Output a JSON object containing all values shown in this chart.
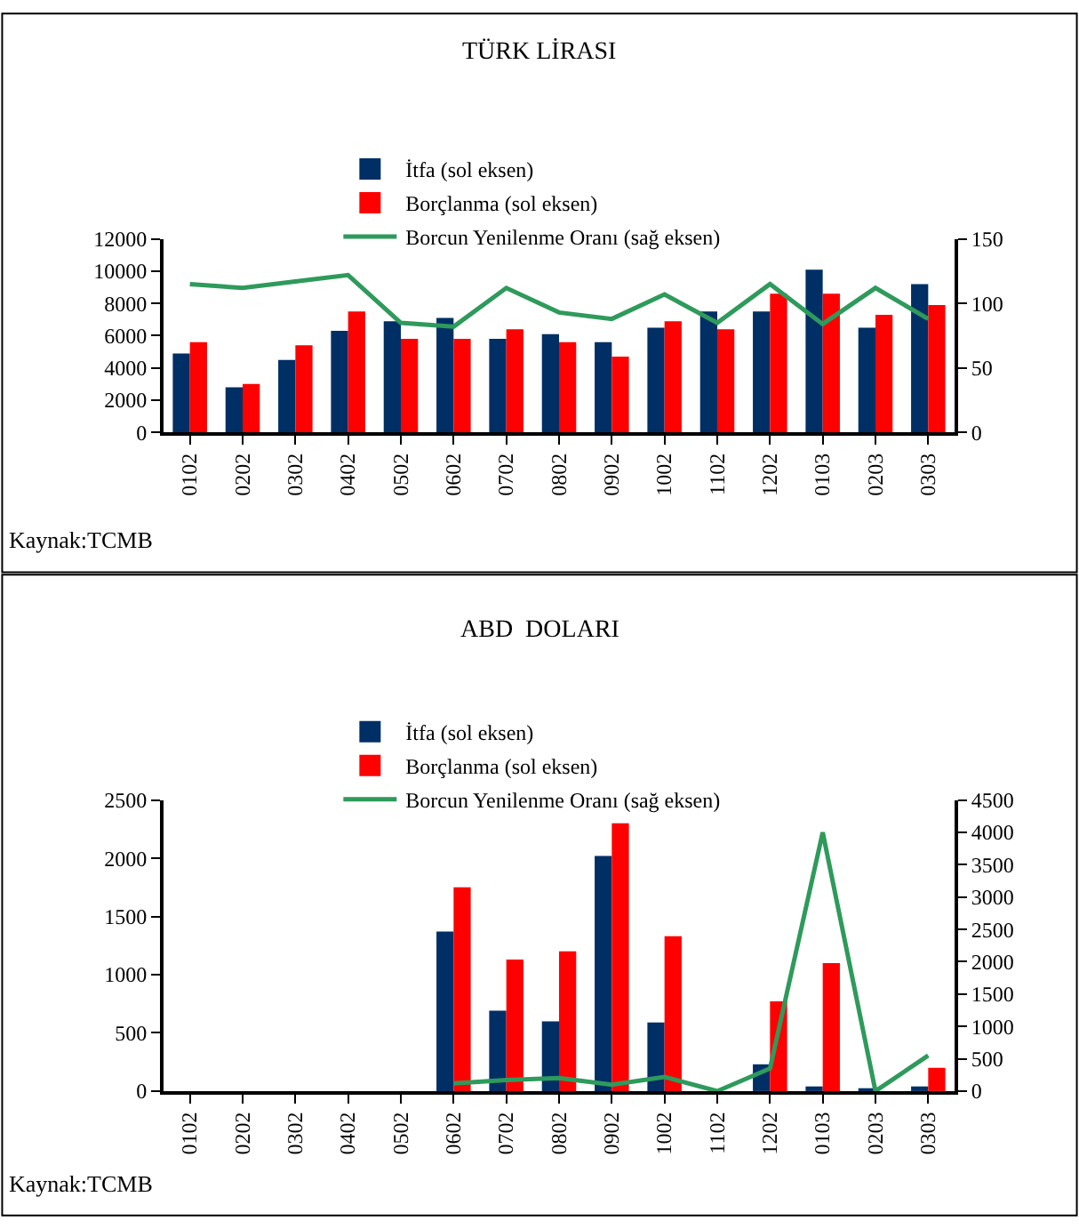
{
  "chart_data": [
    {
      "type": "bar",
      "title": "TÜRK LİRASI",
      "categories": [
        "0102",
        "0202",
        "0302",
        "0402",
        "0502",
        "0602",
        "0702",
        "0802",
        "0902",
        "1002",
        "1102",
        "1202",
        "0103",
        "0203",
        "0303"
      ],
      "series": [
        {
          "name": "İtfa (sol eksen)",
          "color": "#002f65",
          "values": [
            4900,
            2800,
            4500,
            6300,
            6900,
            7100,
            5800,
            6100,
            5600,
            6500,
            7500,
            7500,
            10100,
            6500,
            9200
          ]
        },
        {
          "name": "Borçlanma (sol eksen)",
          "color": "#ff0000",
          "values": [
            5600,
            3000,
            5400,
            7500,
            5800,
            5800,
            6400,
            5600,
            4700,
            6900,
            6400,
            8600,
            8600,
            7300,
            7900
          ]
        },
        {
          "name": "Borcun Yenilenme Oranı (sağ eksen)",
          "color": "#2e9a5b",
          "type": "line",
          "axis": "y2",
          "values": [
            115,
            112,
            117,
            122,
            85,
            82,
            112,
            93,
            88,
            107,
            85,
            115,
            84,
            112,
            88
          ]
        }
      ],
      "ylim": [
        0,
        12000
      ],
      "yticks": [
        0,
        2000,
        4000,
        6000,
        8000,
        10000,
        12000
      ],
      "y2lim": [
        0,
        150
      ],
      "y2ticks": [
        0,
        50,
        100,
        150
      ],
      "legend": "top",
      "marker": "none",
      "line_style": "solid",
      "annotations": [
        "Kaynak:TCMB"
      ]
    },
    {
      "type": "bar",
      "title": "ABD  DOLARI",
      "categories": [
        "0102",
        "0202",
        "0302",
        "0402",
        "0502",
        "0602",
        "0702",
        "0802",
        "0902",
        "1002",
        "1102",
        "1202",
        "0103",
        "0203",
        "0303"
      ],
      "series": [
        {
          "name": "İtfa (sol eksen)",
          "color": "#002f65",
          "values": [
            null,
            null,
            null,
            null,
            null,
            1370,
            690,
            600,
            2020,
            590,
            null,
            230,
            40,
            20,
            40
          ]
        },
        {
          "name": "Borçlanma (sol eksen)",
          "color": "#ff0000",
          "values": [
            null,
            null,
            null,
            null,
            null,
            1750,
            1130,
            1200,
            2300,
            1330,
            null,
            770,
            1100,
            null,
            200
          ]
        },
        {
          "name": "Borcun Yenilenme Oranı (sağ eksen)",
          "color": "#2e9a5b",
          "type": "line",
          "axis": "y2",
          "values": [
            null,
            null,
            null,
            null,
            null,
            120,
            170,
            200,
            100,
            220,
            0,
            350,
            4000,
            0,
            550
          ]
        }
      ],
      "ylim": [
        0,
        2500
      ],
      "yticks": [
        0,
        500,
        1000,
        1500,
        2000,
        2500
      ],
      "y2lim": [
        0,
        4500
      ],
      "y2ticks": [
        0,
        500,
        1000,
        1500,
        2000,
        2500,
        3000,
        3500,
        4000,
        4500
      ],
      "legend": "top",
      "marker": "none",
      "line_style": "solid",
      "annotations": [
        "Kaynak:TCMB"
      ]
    }
  ]
}
